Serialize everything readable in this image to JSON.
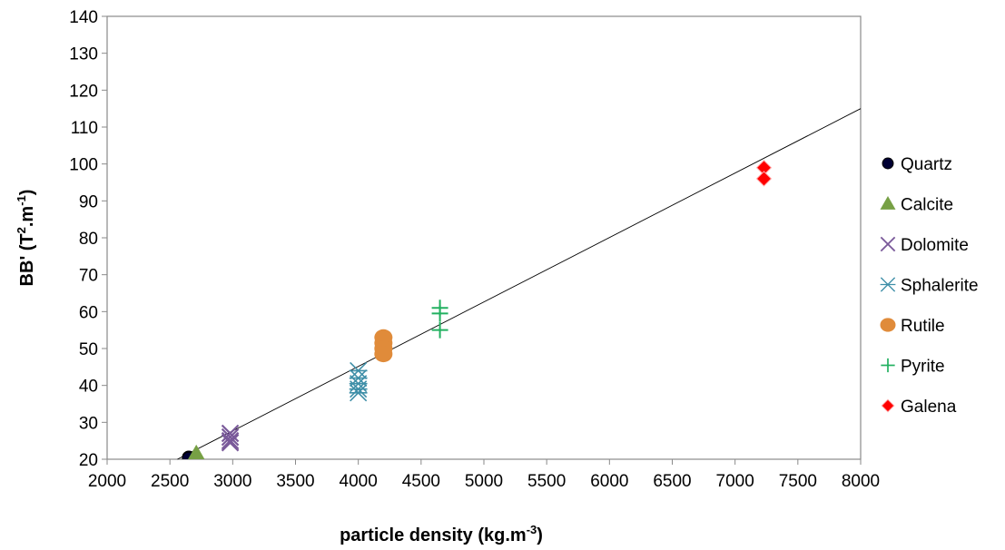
{
  "chart_data": {
    "type": "scatter",
    "xlabel": {
      "base": "particle density (kg.m",
      "sup": "-3",
      "tail": ")"
    },
    "ylabel": {
      "base": "BB' (T",
      "sup1": "2",
      "mid": ".m",
      "sup2": "-1",
      "tail": ")"
    },
    "xlim": [
      2000,
      8000
    ],
    "ylim": [
      20,
      140
    ],
    "x_ticks": [
      2000,
      2500,
      3000,
      3500,
      4000,
      4500,
      5000,
      5500,
      6000,
      6500,
      7000,
      7500,
      8000
    ],
    "y_ticks": [
      20,
      30,
      40,
      50,
      60,
      70,
      80,
      90,
      100,
      110,
      120,
      130,
      140
    ],
    "grid": false,
    "legend_position": "right",
    "trendline": {
      "type": "linear",
      "x": [
        2560,
        8000
      ],
      "y": [
        20,
        115
      ],
      "color": "#000000"
    },
    "series": [
      {
        "name": "Quartz",
        "marker": "circle",
        "color": "#000033",
        "points": [
          [
            2650,
            20.5
          ],
          [
            2650,
            20.2
          ]
        ]
      },
      {
        "name": "Calcite",
        "marker": "triangle",
        "color": "#77a045",
        "points": [
          [
            2710,
            21.5
          ],
          [
            2710,
            20.5
          ],
          [
            2710,
            19.8
          ]
        ]
      },
      {
        "name": "Dolomite",
        "marker": "x",
        "color": "#7a5a9a",
        "points": [
          [
            2980,
            27
          ],
          [
            2980,
            26
          ],
          [
            2980,
            25
          ],
          [
            2980,
            24.5
          ]
        ]
      },
      {
        "name": "Sphalerite",
        "marker": "asterisk",
        "color": "#3f8fa8",
        "points": [
          [
            4000,
            44
          ],
          [
            4000,
            42
          ],
          [
            4000,
            40.5
          ],
          [
            4000,
            39
          ],
          [
            4000,
            38
          ]
        ]
      },
      {
        "name": "Rutile",
        "marker": "ellipse",
        "color": "#e08b3a",
        "points": [
          [
            4200,
            53
          ],
          [
            4200,
            51.5
          ],
          [
            4200,
            50
          ],
          [
            4200,
            48.5
          ]
        ]
      },
      {
        "name": "Pyrite",
        "marker": "plus",
        "color": "#22b060",
        "points": [
          [
            4650,
            61
          ],
          [
            4650,
            59.5
          ],
          [
            4650,
            55
          ]
        ]
      },
      {
        "name": "Galena",
        "marker": "diamond",
        "color": "#ff0000",
        "points": [
          [
            7230,
            99
          ],
          [
            7230,
            96
          ]
        ]
      }
    ]
  }
}
